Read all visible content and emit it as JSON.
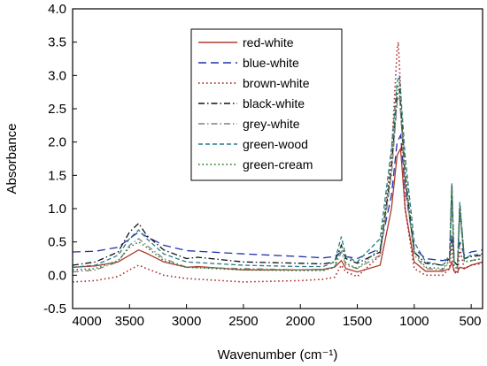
{
  "chart_data": {
    "type": "line",
    "xlabel": "Wavenumber (cm⁻¹)",
    "ylabel": "Absorbance",
    "xlim": [
      4000,
      400
    ],
    "ylim": [
      -0.5,
      4.0
    ],
    "x_ticks": [
      4000,
      3500,
      3000,
      2500,
      2000,
      1500,
      1000,
      500
    ],
    "y_ticks": [
      -0.5,
      0.0,
      0.5,
      1.0,
      1.5,
      2.0,
      2.5,
      3.0,
      3.5,
      4.0
    ],
    "x_tick_labels": [
      "4000",
      "3500",
      "3000",
      "2500",
      "2000",
      "1500",
      "1000",
      "500"
    ],
    "y_tick_labels": [
      "-0.5",
      "0.0",
      "0.5",
      "1.0",
      "1.5",
      "2.0",
      "2.5",
      "3.0",
      "3.5",
      "4.0"
    ],
    "grid": false,
    "legend_position": "top-center",
    "series": [
      {
        "name": "red-white",
        "color": "#b03a2e",
        "dash": "solid",
        "points": [
          [
            4000,
            0.12
          ],
          [
            3800,
            0.14
          ],
          [
            3600,
            0.2
          ],
          [
            3500,
            0.3
          ],
          [
            3420,
            0.38
          ],
          [
            3350,
            0.33
          ],
          [
            3200,
            0.2
          ],
          [
            3000,
            0.12
          ],
          [
            2900,
            0.13
          ],
          [
            2500,
            0.08
          ],
          [
            2000,
            0.08
          ],
          [
            1800,
            0.09
          ],
          [
            1700,
            0.12
          ],
          [
            1640,
            0.22
          ],
          [
            1600,
            0.1
          ],
          [
            1500,
            0.05
          ],
          [
            1300,
            0.15
          ],
          [
            1200,
            1.0
          ],
          [
            1150,
            1.8
          ],
          [
            1120,
            1.9
          ],
          [
            1080,
            1.0
          ],
          [
            1000,
            0.2
          ],
          [
            900,
            0.06
          ],
          [
            750,
            0.06
          ],
          [
            690,
            0.1
          ],
          [
            670,
            0.2
          ],
          [
            650,
            0.06
          ],
          [
            620,
            0.05
          ],
          [
            600,
            0.12
          ],
          [
            560,
            0.1
          ],
          [
            500,
            0.15
          ],
          [
            400,
            0.2
          ]
        ]
      },
      {
        "name": "blue-white",
        "color": "#2233aa",
        "dash": "longdash",
        "points": [
          [
            4000,
            0.35
          ],
          [
            3800,
            0.36
          ],
          [
            3600,
            0.42
          ],
          [
            3500,
            0.55
          ],
          [
            3420,
            0.65
          ],
          [
            3350,
            0.58
          ],
          [
            3200,
            0.45
          ],
          [
            3000,
            0.37
          ],
          [
            2500,
            0.32
          ],
          [
            2000,
            0.28
          ],
          [
            1800,
            0.26
          ],
          [
            1700,
            0.28
          ],
          [
            1640,
            0.35
          ],
          [
            1600,
            0.28
          ],
          [
            1500,
            0.25
          ],
          [
            1300,
            0.4
          ],
          [
            1200,
            1.2
          ],
          [
            1150,
            2.0
          ],
          [
            1120,
            2.1
          ],
          [
            1080,
            1.3
          ],
          [
            1000,
            0.4
          ],
          [
            900,
            0.25
          ],
          [
            750,
            0.22
          ],
          [
            690,
            0.25
          ],
          [
            670,
            0.6
          ],
          [
            650,
            0.24
          ],
          [
            620,
            0.22
          ],
          [
            600,
            0.5
          ],
          [
            560,
            0.3
          ],
          [
            500,
            0.35
          ],
          [
            400,
            0.38
          ]
        ]
      },
      {
        "name": "brown-white",
        "color": "#aa2222",
        "dash": "dot",
        "points": [
          [
            4000,
            -0.1
          ],
          [
            3800,
            -0.08
          ],
          [
            3600,
            -0.02
          ],
          [
            3500,
            0.08
          ],
          [
            3420,
            0.15
          ],
          [
            3350,
            0.1
          ],
          [
            3200,
            0.0
          ],
          [
            3000,
            -0.05
          ],
          [
            2500,
            -0.1
          ],
          [
            2000,
            -0.08
          ],
          [
            1800,
            -0.06
          ],
          [
            1700,
            -0.03
          ],
          [
            1640,
            0.15
          ],
          [
            1600,
            0.05
          ],
          [
            1500,
            -0.02
          ],
          [
            1300,
            0.3
          ],
          [
            1200,
            1.8
          ],
          [
            1150,
            3.4
          ],
          [
            1140,
            3.5
          ],
          [
            1120,
            2.8
          ],
          [
            1080,
            1.0
          ],
          [
            1000,
            0.1
          ],
          [
            900,
            0.0
          ],
          [
            750,
            0.0
          ],
          [
            690,
            0.1
          ],
          [
            670,
            0.5
          ],
          [
            650,
            0.05
          ],
          [
            620,
            0.02
          ],
          [
            600,
            0.4
          ],
          [
            560,
            0.1
          ],
          [
            500,
            0.15
          ],
          [
            400,
            0.18
          ]
        ]
      },
      {
        "name": "black-white",
        "color": "#111111",
        "dash": "dashdot",
        "points": [
          [
            4000,
            0.15
          ],
          [
            3800,
            0.2
          ],
          [
            3600,
            0.35
          ],
          [
            3500,
            0.65
          ],
          [
            3420,
            0.78
          ],
          [
            3350,
            0.6
          ],
          [
            3200,
            0.38
          ],
          [
            3000,
            0.25
          ],
          [
            2900,
            0.27
          ],
          [
            2500,
            0.2
          ],
          [
            2000,
            0.18
          ],
          [
            1800,
            0.17
          ],
          [
            1700,
            0.2
          ],
          [
            1640,
            0.45
          ],
          [
            1600,
            0.25
          ],
          [
            1500,
            0.18
          ],
          [
            1300,
            0.35
          ],
          [
            1200,
            1.6
          ],
          [
            1150,
            2.7
          ],
          [
            1130,
            2.8
          ],
          [
            1080,
            1.5
          ],
          [
            1000,
            0.35
          ],
          [
            900,
            0.18
          ],
          [
            750,
            0.15
          ],
          [
            690,
            0.25
          ],
          [
            670,
            1.35
          ],
          [
            650,
            0.2
          ],
          [
            620,
            0.15
          ],
          [
            600,
            1.05
          ],
          [
            560,
            0.25
          ],
          [
            500,
            0.28
          ],
          [
            400,
            0.3
          ]
        ]
      },
      {
        "name": "grey-white",
        "color": "#808080",
        "dash": "dashdot",
        "points": [
          [
            4000,
            0.05
          ],
          [
            3800,
            0.08
          ],
          [
            3600,
            0.2
          ],
          [
            3500,
            0.45
          ],
          [
            3420,
            0.55
          ],
          [
            3350,
            0.45
          ],
          [
            3200,
            0.25
          ],
          [
            3000,
            0.12
          ],
          [
            2500,
            0.1
          ],
          [
            2000,
            0.08
          ],
          [
            1800,
            0.08
          ],
          [
            1700,
            0.12
          ],
          [
            1640,
            0.35
          ],
          [
            1600,
            0.15
          ],
          [
            1500,
            0.1
          ],
          [
            1300,
            0.3
          ],
          [
            1200,
            1.5
          ],
          [
            1150,
            2.6
          ],
          [
            1130,
            2.7
          ],
          [
            1080,
            1.4
          ],
          [
            1000,
            0.3
          ],
          [
            900,
            0.1
          ],
          [
            750,
            0.08
          ],
          [
            690,
            0.2
          ],
          [
            670,
            1.3
          ],
          [
            650,
            0.12
          ],
          [
            620,
            0.1
          ],
          [
            600,
            0.95
          ],
          [
            560,
            0.2
          ],
          [
            500,
            0.22
          ],
          [
            400,
            0.25
          ]
        ]
      },
      {
        "name": "green-wood",
        "color": "#2a7a8a",
        "dash": "dash",
        "points": [
          [
            4000,
            0.12
          ],
          [
            3800,
            0.15
          ],
          [
            3600,
            0.3
          ],
          [
            3500,
            0.55
          ],
          [
            3420,
            0.68
          ],
          [
            3350,
            0.55
          ],
          [
            3200,
            0.32
          ],
          [
            3000,
            0.2
          ],
          [
            2500,
            0.15
          ],
          [
            2000,
            0.13
          ],
          [
            1800,
            0.13
          ],
          [
            1700,
            0.2
          ],
          [
            1640,
            0.58
          ],
          [
            1600,
            0.28
          ],
          [
            1500,
            0.2
          ],
          [
            1300,
            0.55
          ],
          [
            1200,
            1.9
          ],
          [
            1150,
            2.9
          ],
          [
            1130,
            3.0
          ],
          [
            1080,
            1.8
          ],
          [
            1000,
            0.5
          ],
          [
            900,
            0.2
          ],
          [
            750,
            0.15
          ],
          [
            690,
            0.3
          ],
          [
            670,
            1.38
          ],
          [
            650,
            0.2
          ],
          [
            620,
            0.18
          ],
          [
            600,
            1.1
          ],
          [
            560,
            0.25
          ],
          [
            500,
            0.3
          ],
          [
            400,
            0.32
          ]
        ]
      },
      {
        "name": "green-cream",
        "color": "#2e7d2e",
        "dash": "dot",
        "points": [
          [
            4000,
            0.08
          ],
          [
            3800,
            0.1
          ],
          [
            3600,
            0.22
          ],
          [
            3500,
            0.42
          ],
          [
            3420,
            0.5
          ],
          [
            3350,
            0.42
          ],
          [
            3200,
            0.22
          ],
          [
            3000,
            0.12
          ],
          [
            2500,
            0.08
          ],
          [
            2000,
            0.07
          ],
          [
            1800,
            0.07
          ],
          [
            1700,
            0.12
          ],
          [
            1640,
            0.45
          ],
          [
            1600,
            0.18
          ],
          [
            1500,
            0.1
          ],
          [
            1300,
            0.4
          ],
          [
            1200,
            1.7
          ],
          [
            1150,
            2.8
          ],
          [
            1130,
            2.9
          ],
          [
            1080,
            1.6
          ],
          [
            1000,
            0.35
          ],
          [
            900,
            0.12
          ],
          [
            750,
            0.1
          ],
          [
            690,
            0.22
          ],
          [
            670,
            1.3
          ],
          [
            650,
            0.15
          ],
          [
            620,
            0.12
          ],
          [
            600,
            1.0
          ],
          [
            560,
            0.2
          ],
          [
            500,
            0.22
          ],
          [
            400,
            0.25
          ]
        ]
      }
    ]
  }
}
